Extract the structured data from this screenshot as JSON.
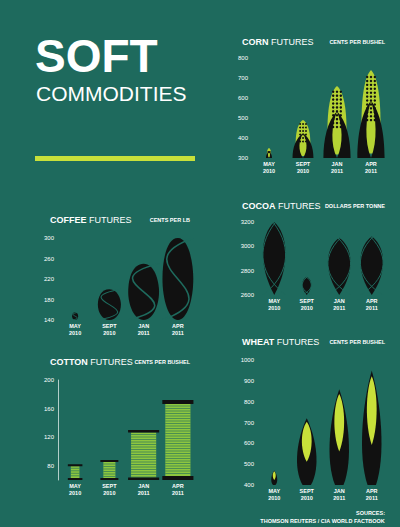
{
  "header": {
    "title": "SOFT",
    "subtitle": "COMMODITIES"
  },
  "chart_data": [
    {
      "type": "bar",
      "title": "CORN FUTURES",
      "subtitle": "CENTS PER BUSHEL",
      "categories": [
        "MAY 2010",
        "SEPT 2010",
        "JAN 2011",
        "APR 2011"
      ],
      "values": [
        350,
        490,
        660,
        740
      ],
      "color": "#b5d334",
      "marker": "corn",
      "ylim": [
        300,
        800
      ],
      "yticks": [
        300,
        400,
        500,
        600,
        700,
        800
      ],
      "grid": false
    },
    {
      "type": "bar",
      "title": "COFFEE FUTURES",
      "subtitle": "CENTS PER LB",
      "categories": [
        "MAY 2010",
        "SEPT 2010",
        "JAN 2011",
        "APR 2011"
      ],
      "values": [
        155,
        200,
        250,
        300
      ],
      "color": "#111111",
      "marker": "bean",
      "ylim": [
        140,
        300
      ],
      "yticks": [
        140,
        180,
        220,
        260,
        300
      ],
      "grid": false
    },
    {
      "type": "bar",
      "title": "COCOA FUTURES",
      "subtitle": "DOLLARS PER TONNE",
      "categories": [
        "MAY 2010",
        "SEPT 2010",
        "JAN 2011",
        "APR 2011"
      ],
      "values": [
        3200,
        2750,
        3070,
        3080
      ],
      "color": "#111111",
      "marker": "pod",
      "ylim": [
        2600,
        3200
      ],
      "yticks": [
        2600,
        2800,
        3000,
        3200
      ],
      "grid": false
    },
    {
      "type": "bar",
      "title": "COTTON FUTURES",
      "subtitle": "CENTS PER BUSHEL",
      "categories": [
        "MAY 2010",
        "SEPT 2010",
        "JAN 2011",
        "APR 2011"
      ],
      "values": [
        82,
        88,
        130,
        172
      ],
      "color": "#8dc63f",
      "marker": "spool",
      "ylim": [
        60,
        200
      ],
      "yticks": [
        80,
        120,
        160,
        200
      ],
      "grid": false
    },
    {
      "type": "bar",
      "title": "WHEAT FUTURES",
      "subtitle": "CENTS PER BUSHEL",
      "categories": [
        "MAY 2010",
        "SEPT 2010",
        "JAN 2011",
        "APR 2011"
      ],
      "values": [
        470,
        720,
        860,
        950
      ],
      "color": "#c8e03a",
      "marker": "wheat",
      "ylim": [
        400,
        1000
      ],
      "yticks": [
        400,
        500,
        600,
        700,
        800,
        900,
        1000
      ],
      "grid": false
    }
  ],
  "sources": {
    "label": "SOURCES:",
    "text": "THOMSON REUTERS / CIA WORLD FACTBOOK"
  }
}
